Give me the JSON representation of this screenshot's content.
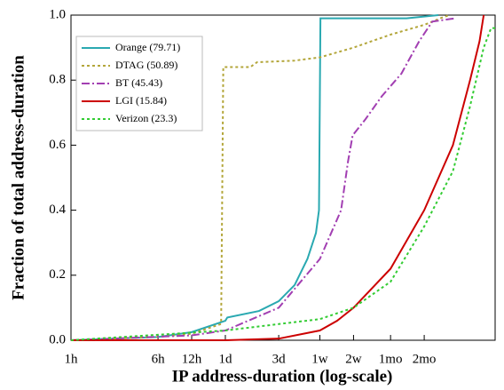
{
  "chart_data": {
    "type": "line",
    "x_label": "IP address-duration (log-scale)",
    "y_label": "Fraction of total address-duration",
    "xscale": "log",
    "xlim": [
      1,
      6200
    ],
    "ylim": [
      0,
      1
    ],
    "xticks": [
      {
        "value": 1,
        "label": "1h"
      },
      {
        "value": 6,
        "label": "6h"
      },
      {
        "value": 12,
        "label": "12h"
      },
      {
        "value": 24,
        "label": "1d"
      },
      {
        "value": 72,
        "label": "3d"
      },
      {
        "value": 168,
        "label": "1w"
      },
      {
        "value": 336,
        "label": "2w"
      },
      {
        "value": 720,
        "label": "1mo"
      },
      {
        "value": 1440,
        "label": "2mo"
      }
    ],
    "yticks": [
      {
        "value": 0,
        "label": "0.0"
      },
      {
        "value": 0.2,
        "label": "0.2"
      },
      {
        "value": 0.4,
        "label": "0.4"
      },
      {
        "value": 0.6,
        "label": "0.6"
      },
      {
        "value": 0.8,
        "label": "0.8"
      },
      {
        "value": 1,
        "label": "1.0"
      }
    ],
    "legend": "upper left",
    "series": [
      {
        "name": "Orange (79.71)",
        "color": "#2aa9b1",
        "style": "solid",
        "x": [
          1,
          6,
          12,
          24,
          25,
          48,
          72,
          100,
          130,
          155,
          165,
          170,
          1000,
          1930
        ],
        "values": [
          0,
          0.01,
          0.025,
          0.06,
          0.07,
          0.09,
          0.12,
          0.17,
          0.25,
          0.33,
          0.4,
          0.99,
          0.99,
          1.0
        ]
      },
      {
        "name": "DTAG (50.89)",
        "color": "#b3a63a",
        "style": "dotted",
        "x": [
          1,
          6,
          12,
          22,
          23,
          40,
          46,
          100,
          168,
          336,
          720,
          1440,
          2000,
          2400
        ],
        "values": [
          0,
          0.01,
          0.02,
          0.05,
          0.84,
          0.84,
          0.855,
          0.86,
          0.87,
          0.9,
          0.94,
          0.97,
          0.99,
          1.0
        ]
      },
      {
        "name": "BT (45.43)",
        "color": "#a23fb2",
        "style": "dashdot",
        "x": [
          1,
          12,
          24,
          72,
          168,
          260,
          300,
          330,
          430,
          600,
          900,
          1300,
          1700,
          2700
        ],
        "values": [
          0,
          0.015,
          0.03,
          0.1,
          0.25,
          0.4,
          0.55,
          0.63,
          0.68,
          0.75,
          0.82,
          0.92,
          0.98,
          0.99
        ]
      },
      {
        "name": "LGI (15.84)",
        "color": "#cc0000",
        "style": "solid",
        "x": [
          1,
          24,
          72,
          168,
          240,
          336,
          720,
          1440,
          2600,
          3700,
          4500,
          4900
        ],
        "values": [
          0,
          0,
          0.005,
          0.03,
          0.06,
          0.1,
          0.22,
          0.4,
          0.6,
          0.8,
          0.92,
          1.0
        ]
      },
      {
        "name": "Verizon (23.3)",
        "color": "#33cc33",
        "style": "dotted",
        "x": [
          1,
          24,
          168,
          336,
          720,
          1440,
          2600,
          3700,
          4900,
          5700,
          6200
        ],
        "values": [
          0,
          0.03,
          0.065,
          0.1,
          0.18,
          0.35,
          0.52,
          0.72,
          0.9,
          0.96,
          0.96
        ]
      }
    ]
  }
}
